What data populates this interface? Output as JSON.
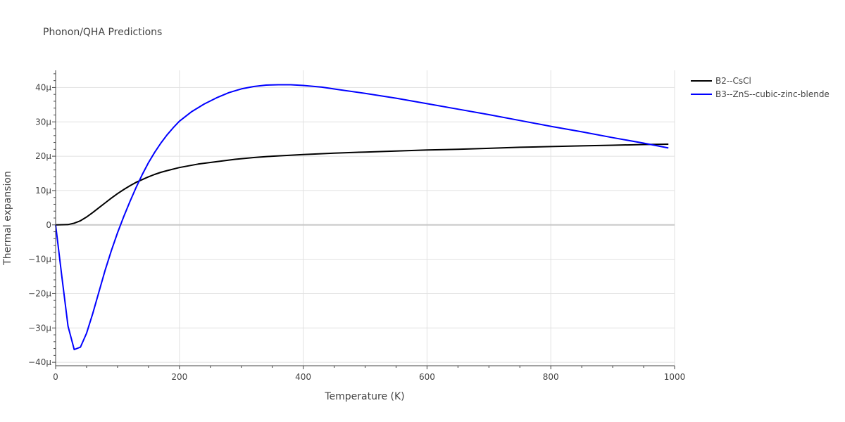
{
  "chart_data": {
    "type": "line",
    "title": "Phonon/QHA Predictions",
    "xlabel": "Temperature (K)",
    "ylabel": "Thermal expansion",
    "xlim": [
      0,
      1000
    ],
    "ylim": [
      -41,
      45
    ],
    "x_ticks": [
      0,
      200,
      400,
      600,
      800,
      1000
    ],
    "y_ticks": [
      -40,
      -30,
      -20,
      -10,
      0,
      10,
      20,
      30,
      40
    ],
    "y_tick_labels": [
      "−40μ",
      "−30μ",
      "−20μ",
      "−10μ",
      "0",
      "10μ",
      "20μ",
      "30μ",
      "40μ"
    ],
    "grid": true,
    "legend_position": "top-right, outside plot",
    "series": [
      {
        "name": "B2--CsCl",
        "color": "#000000",
        "points": [
          [
            0,
            0
          ],
          [
            10,
            0.05
          ],
          [
            20,
            0.1
          ],
          [
            30,
            0.5
          ],
          [
            40,
            1.2
          ],
          [
            50,
            2.3
          ],
          [
            60,
            3.6
          ],
          [
            70,
            5.0
          ],
          [
            80,
            6.4
          ],
          [
            90,
            7.8
          ],
          [
            100,
            9.1
          ],
          [
            110,
            10.3
          ],
          [
            120,
            11.4
          ],
          [
            130,
            12.4
          ],
          [
            140,
            13.2
          ],
          [
            150,
            14.0
          ],
          [
            160,
            14.7
          ],
          [
            170,
            15.3
          ],
          [
            180,
            15.8
          ],
          [
            200,
            16.7
          ],
          [
            230,
            17.7
          ],
          [
            260,
            18.4
          ],
          [
            290,
            19.1
          ],
          [
            320,
            19.6
          ],
          [
            350,
            20.0
          ],
          [
            400,
            20.5
          ],
          [
            450,
            20.9
          ],
          [
            500,
            21.2
          ],
          [
            550,
            21.5
          ],
          [
            600,
            21.8
          ],
          [
            650,
            22.0
          ],
          [
            700,
            22.3
          ],
          [
            750,
            22.6
          ],
          [
            800,
            22.8
          ],
          [
            850,
            23.0
          ],
          [
            900,
            23.2
          ],
          [
            950,
            23.4
          ],
          [
            990,
            23.5
          ]
        ]
      },
      {
        "name": "B3--ZnS--cubic-zinc-blende",
        "color": "#0000ff",
        "points": [
          [
            0,
            0
          ],
          [
            10,
            -15
          ],
          [
            20,
            -29.5
          ],
          [
            30,
            -36.3
          ],
          [
            40,
            -35.6
          ],
          [
            50,
            -31.5
          ],
          [
            60,
            -25.8
          ],
          [
            70,
            -19.5
          ],
          [
            80,
            -13.2
          ],
          [
            90,
            -7.5
          ],
          [
            100,
            -2.3
          ],
          [
            110,
            2.4
          ],
          [
            120,
            6.8
          ],
          [
            130,
            10.9
          ],
          [
            140,
            14.7
          ],
          [
            150,
            18.1
          ],
          [
            160,
            21.1
          ],
          [
            170,
            23.8
          ],
          [
            180,
            26.2
          ],
          [
            190,
            28.3
          ],
          [
            200,
            30.2
          ],
          [
            220,
            33.0
          ],
          [
            240,
            35.2
          ],
          [
            260,
            37.0
          ],
          [
            280,
            38.5
          ],
          [
            300,
            39.6
          ],
          [
            320,
            40.3
          ],
          [
            340,
            40.7
          ],
          [
            360,
            40.8
          ],
          [
            380,
            40.8
          ],
          [
            400,
            40.6
          ],
          [
            430,
            40.1
          ],
          [
            460,
            39.3
          ],
          [
            500,
            38.3
          ],
          [
            550,
            36.9
          ],
          [
            600,
            35.3
          ],
          [
            650,
            33.7
          ],
          [
            700,
            32.1
          ],
          [
            750,
            30.4
          ],
          [
            800,
            28.7
          ],
          [
            850,
            27.1
          ],
          [
            900,
            25.4
          ],
          [
            950,
            23.8
          ],
          [
            990,
            22.4
          ]
        ]
      }
    ]
  }
}
